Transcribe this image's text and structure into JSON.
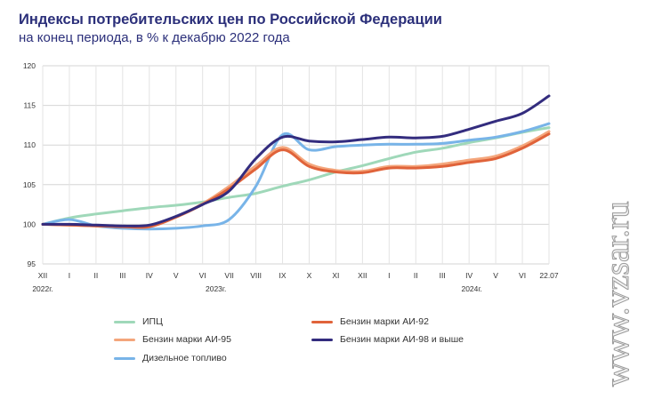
{
  "title": "Индексы потребительских цен по Российской Федерации",
  "subtitle": "на конец периода, в % к декабрю 2022 года",
  "watermark": "www.vzsar.ru",
  "chart_data": {
    "type": "line",
    "categories": [
      "XII",
      "I",
      "II",
      "III",
      "IV",
      "V",
      "VI",
      "VII",
      "VIII",
      "IX",
      "X",
      "XI",
      "XII",
      "I",
      "II",
      "III",
      "IV",
      "V",
      "VI",
      "22.07"
    ],
    "year_labels": [
      {
        "label": "2022г.",
        "at": 0
      },
      {
        "label": "2023г.",
        "at": 6.5
      },
      {
        "label": "2024г.",
        "at": 16.1
      }
    ],
    "ylim": [
      95,
      120
    ],
    "yticks": [
      95,
      100,
      105,
      110,
      115,
      120
    ],
    "grid": true,
    "legend_position": "bottom",
    "series": [
      {
        "name": "ИПЦ",
        "color": "#9fd8b9",
        "values": [
          100,
          100.8,
          101.3,
          101.7,
          102.1,
          102.4,
          102.8,
          103.4,
          103.9,
          104.8,
          105.6,
          106.6,
          107.4,
          108.3,
          109.1,
          109.6,
          110.3,
          110.9,
          111.6,
          112.2
        ]
      },
      {
        "name": "Бензин марки АИ-92",
        "color": "#e0633a",
        "values": [
          100,
          99.9,
          99.8,
          99.7,
          99.7,
          100.9,
          102.5,
          104.5,
          107.0,
          109.4,
          107.3,
          106.6,
          106.5,
          107.1,
          107.1,
          107.3,
          107.8,
          108.3,
          109.6,
          111.4
        ]
      },
      {
        "name": "Бензин марки АИ-95",
        "color": "#f4a67c",
        "values": [
          100,
          99.9,
          99.8,
          99.7,
          99.7,
          100.9,
          102.6,
          104.8,
          107.4,
          109.7,
          107.6,
          106.8,
          106.7,
          107.3,
          107.3,
          107.6,
          108.1,
          108.6,
          109.9,
          111.7
        ]
      },
      {
        "name": "Бензин марки АИ-98 и выше",
        "color": "#332c7e",
        "values": [
          100,
          100.0,
          99.9,
          99.8,
          99.9,
          101.0,
          102.5,
          104.2,
          108.3,
          111.0,
          110.5,
          110.4,
          110.7,
          111.0,
          110.9,
          111.1,
          112.0,
          113.0,
          114.0,
          116.2
        ]
      },
      {
        "name": "Дизельное топливо",
        "color": "#78b4e8",
        "values": [
          100,
          100.6,
          99.8,
          99.5,
          99.4,
          99.5,
          99.8,
          100.6,
          104.8,
          111.3,
          109.4,
          109.8,
          110.0,
          110.1,
          110.1,
          110.2,
          110.6,
          111.0,
          111.7,
          112.7
        ]
      }
    ]
  },
  "legend": [
    {
      "label": "ИПЦ",
      "color": "#9fd8b9"
    },
    {
      "label": "Бензин марки АИ-92",
      "color": "#e0633a"
    },
    {
      "label": "Бензин марки АИ-95",
      "color": "#f4a67c"
    },
    {
      "label": "Бензин марки АИ-98 и  выше",
      "color": "#332c7e"
    },
    {
      "label": "Дизельное топливо",
      "color": "#78b4e8"
    }
  ]
}
